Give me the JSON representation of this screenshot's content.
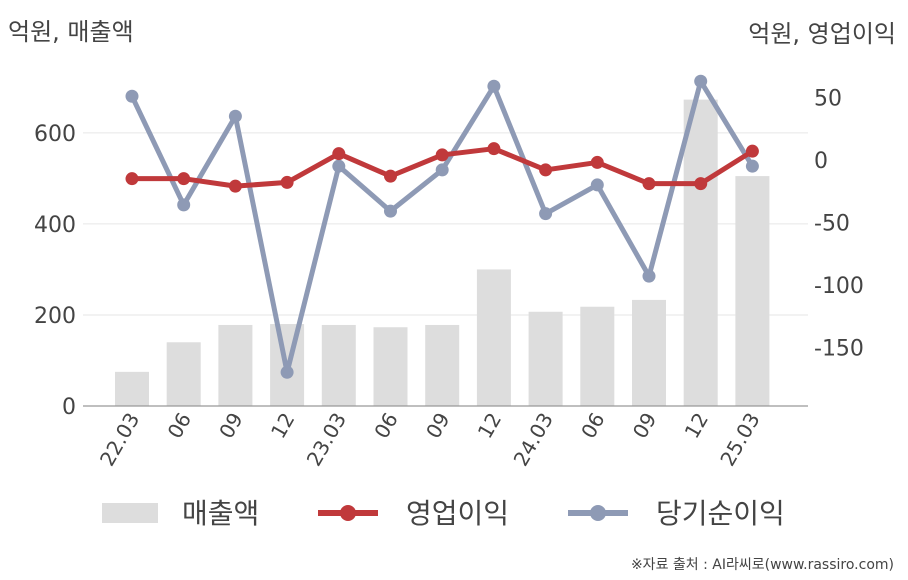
{
  "labels": {
    "left_unit": "억원, 매출액",
    "right_unit": "억원, 영업이익",
    "source": "※자료 출처 : AI라씨로(www.rassiro.com)"
  },
  "chart_data": {
    "type": "bar",
    "categories": [
      "22.03",
      "06",
      "09",
      "12",
      "23.03",
      "06",
      "09",
      "12",
      "24.03",
      "06",
      "09",
      "12",
      "25.03"
    ],
    "series": [
      {
        "name": "매출액",
        "type": "bar",
        "axis": "left",
        "color": "#dddddd",
        "values": [
          75,
          140,
          178,
          180,
          178,
          173,
          178,
          300,
          207,
          218,
          233,
          673,
          505
        ]
      },
      {
        "name": "영업이익",
        "type": "line",
        "axis": "right",
        "color": "#c0393b",
        "values": [
          -15,
          -15,
          -21,
          -18,
          5,
          -13,
          4,
          9,
          -8,
          -2,
          -19,
          -19,
          7
        ]
      },
      {
        "name": "당기순이익",
        "type": "line",
        "axis": "right",
        "color": "#8e9ab5",
        "values": [
          51,
          -36,
          35,
          -170,
          -5,
          -41,
          -8,
          59,
          -43,
          -20,
          -93,
          63,
          -5
        ]
      }
    ],
    "y_left": {
      "range": [
        0,
        760
      ],
      "ticks": [
        0,
        200,
        400,
        600
      ]
    },
    "y_right": {
      "range": [
        -197,
        80
      ],
      "ticks": [
        50,
        0,
        -50,
        -100,
        -150
      ]
    },
    "grid": true,
    "legend_position": "bottom"
  }
}
